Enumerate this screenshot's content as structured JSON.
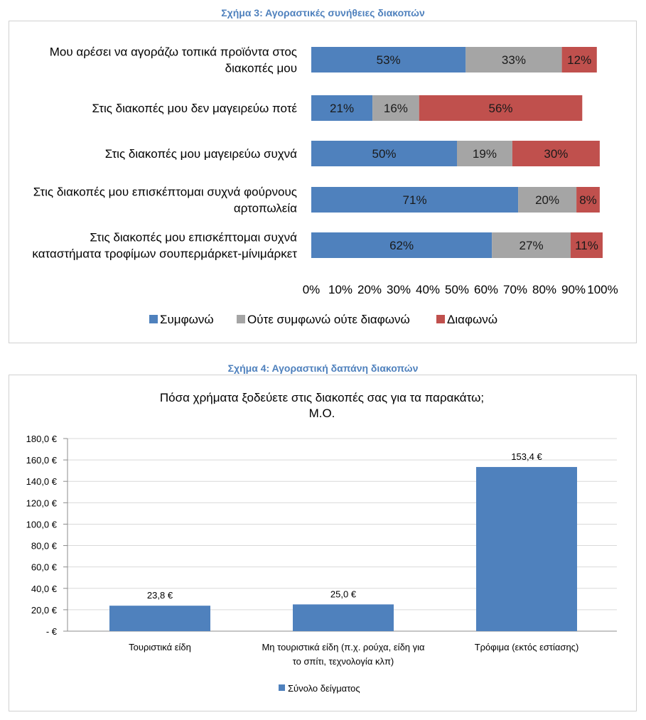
{
  "figure3": {
    "caption": "Σχήμα 3: Αγοραστικές συνήθειες διακοπών",
    "chart_data": {
      "type": "bar",
      "orientation": "horizontal-stacked-100",
      "categories": [
        [
          "Μου αρέσει να αγοράζω τοπικά προϊόντα στος",
          "διακοπές μου"
        ],
        [
          "Στις διακοπές μου δεν μαγειρεύω ποτέ"
        ],
        [
          "Στις διακοπές μου μαγειρεύω συχνά"
        ],
        [
          "Στις διακοπές μου επισκέπτομαι συχνά φούρνους",
          "αρτοπωλεία"
        ],
        [
          "Στις διακοπές μου επισκέπτομαι συχνά",
          "καταστήματα τροφίμων σουπερμάρκετ-μίνιμάρκετ"
        ]
      ],
      "series": [
        {
          "name": "Συμφωνώ",
          "color": "#4f81bd",
          "values": [
            53,
            21,
            50,
            71,
            62
          ],
          "labels": [
            "53%",
            "21%",
            "50%",
            "71%",
            "62%"
          ]
        },
        {
          "name": "Ούτε συμφωνώ ούτε διαφωνώ",
          "color": "#a5a5a5",
          "values": [
            33,
            16,
            19,
            20,
            27
          ],
          "labels": [
            "33%",
            "16%",
            "19%",
            "20%",
            "27%"
          ]
        },
        {
          "name": "Διαφωνώ",
          "color": "#c0504d",
          "values": [
            12,
            56,
            30,
            8,
            11
          ],
          "labels": [
            "12%",
            "56%",
            "30%",
            "8%",
            "11%"
          ]
        }
      ],
      "xlim": [
        0,
        100
      ],
      "xticks": [
        "0%",
        "10%",
        "20%",
        "30%",
        "40%",
        "50%",
        "60%",
        "70%",
        "80%",
        "90%",
        "100%"
      ],
      "legend_position": "bottom",
      "grid": false
    }
  },
  "figure4": {
    "caption": "Σχήμα 4: Αγοραστική δαπάνη διακοπών",
    "chart_data": {
      "type": "bar",
      "title": [
        "Πόσα χρήματα ξοδεύετε στις διακοπές σας για τα παρακάτω;",
        "Μ.Ο."
      ],
      "categories": [
        [
          "Τουριστικά είδη"
        ],
        [
          "Μη τουριστικά είδη (π.χ. ρούχα, είδη για",
          "το σπίτι, τεχνολογία κλπ)"
        ],
        [
          "Τρόφιμα (εκτός εστίασης)"
        ]
      ],
      "series": [
        {
          "name": "Σύνολο δείγματος",
          "color": "#4f81bd",
          "values": [
            23.8,
            25.0,
            153.4
          ],
          "labels": [
            "23,8 €",
            "25,0 €",
            "153,4 €"
          ]
        }
      ],
      "ylim": [
        0,
        180
      ],
      "yticks": [
        {
          "v": 0,
          "label": "-   €"
        },
        {
          "v": 20,
          "label": "20,0 €"
        },
        {
          "v": 40,
          "label": "40,0 €"
        },
        {
          "v": 60,
          "label": "60,0 €"
        },
        {
          "v": 80,
          "label": "80,0 €"
        },
        {
          "v": 100,
          "label": "100,0 €"
        },
        {
          "v": 120,
          "label": "120,0 €"
        },
        {
          "v": 140,
          "label": "140,0 €"
        },
        {
          "v": 160,
          "label": "160,0 €"
        },
        {
          "v": 180,
          "label": "180,0 €"
        }
      ],
      "legend_position": "bottom",
      "grid": true
    }
  }
}
